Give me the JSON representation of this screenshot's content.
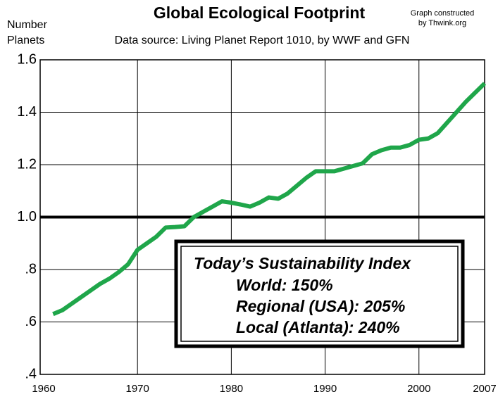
{
  "chart_data": {
    "type": "line",
    "title": "Global Ecological Footprint",
    "subtitle": "Data source: Living Planet Report 1010, by WWF and GFN",
    "credit": [
      "Graph constructed",
      "by Thwink.org"
    ],
    "y_label": [
      "Number",
      "Planets"
    ],
    "x": [
      1961,
      1962,
      1963,
      1964,
      1965,
      1966,
      1967,
      1968,
      1969,
      1970,
      1971,
      1972,
      1973,
      1974,
      1975,
      1976,
      1977,
      1978,
      1979,
      1980,
      1981,
      1982,
      1983,
      1984,
      1985,
      1986,
      1987,
      1988,
      1989,
      1990,
      1991,
      1992,
      1993,
      1994,
      1995,
      1996,
      1997,
      1998,
      1999,
      2000,
      2001,
      2002,
      2003,
      2004,
      2005,
      2006,
      2007
    ],
    "series": [
      {
        "color": "#1fa64a",
        "values": [
          0.63,
          0.645,
          0.67,
          0.695,
          0.72,
          0.745,
          0.765,
          0.79,
          0.82,
          0.875,
          0.9,
          0.925,
          0.96,
          0.962,
          0.965,
          1.0,
          1.02,
          1.04,
          1.06,
          1.055,
          1.048,
          1.04,
          1.055,
          1.075,
          1.07,
          1.09,
          1.12,
          1.15,
          1.175,
          1.175,
          1.175,
          1.185,
          1.195,
          1.205,
          1.24,
          1.255,
          1.265,
          1.265,
          1.275,
          1.295,
          1.3,
          1.32,
          1.36,
          1.4,
          1.44,
          1.475,
          1.51
        ]
      }
    ],
    "xlim": [
      1960,
      2007
    ],
    "xticks": [
      1960,
      1970,
      1980,
      1990,
      2000,
      2007
    ],
    "ylim": [
      0.4,
      1.6
    ],
    "yticks": [
      {
        "value": 0.4,
        "label": ".4"
      },
      {
        "value": 0.6,
        "label": ".6"
      },
      {
        "value": 0.8,
        "label": ".8"
      },
      {
        "value": 1.0,
        "label": "1.0"
      },
      1.2,
      1.4,
      1.6
    ],
    "reference_line": 1,
    "grid": true,
    "annotation": {
      "title": "Today’s Sustainability Index",
      "lines": [
        "World: 150%",
        "Regional (USA): 205%",
        "Local (Atlanta): 240%"
      ]
    }
  }
}
